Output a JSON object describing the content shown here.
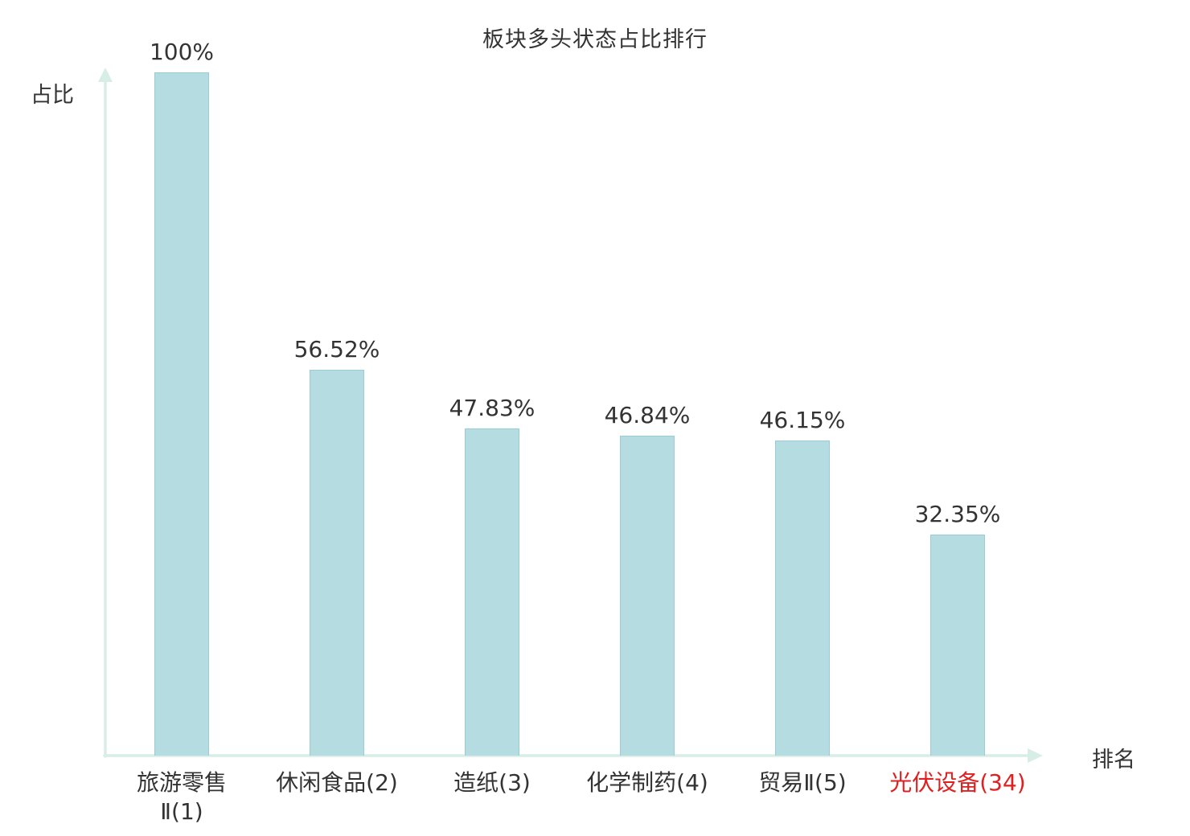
{
  "chart_data": {
    "type": "bar",
    "title": "板块多头状态占比排行",
    "xlabel": "排名",
    "ylabel": "占比",
    "ylim": [
      0,
      100
    ],
    "grid": false,
    "legend": false,
    "categories": [
      "旅游零售Ⅱ(1)",
      "休闲食品(2)",
      "造纸(3)",
      "化学制药(4)",
      "贸易Ⅱ(5)",
      "光伏设备(34)"
    ],
    "category_lines": [
      [
        "旅游零售",
        "Ⅱ(1)"
      ],
      [
        "休闲食品(2)"
      ],
      [
        "造纸(3)"
      ],
      [
        "化学制药(4)"
      ],
      [
        "贸易Ⅱ(5)"
      ],
      [
        "光伏设备(34)"
      ]
    ],
    "values": [
      100,
      56.52,
      47.83,
      46.84,
      46.15,
      32.35
    ],
    "value_labels": [
      "100%",
      "56.52%",
      "47.83%",
      "46.84%",
      "46.15%",
      "32.35%"
    ],
    "highlight_index": 5,
    "colors": {
      "bar_fill": "#b5dce1",
      "bar_border": "#9bccd3",
      "axis": "#d7eee7",
      "text": "#333333",
      "highlight": "#e02020"
    }
  }
}
